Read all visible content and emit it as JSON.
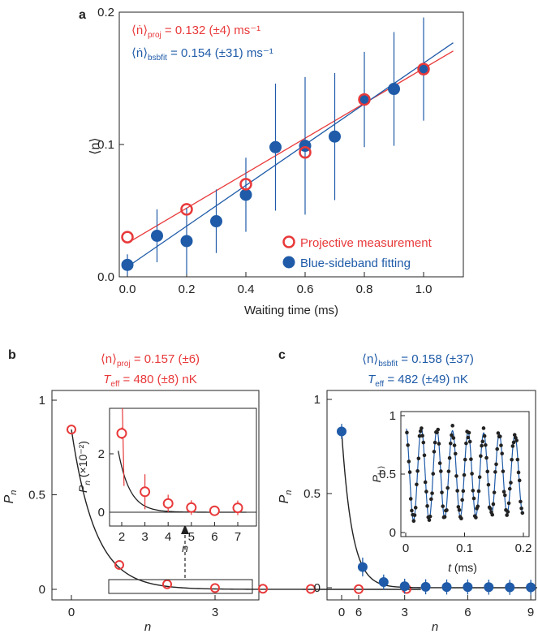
{
  "colors": {
    "red": "#e8393a",
    "blue": "#1f5ba8",
    "black": "#222222",
    "dark": "#222222"
  },
  "chart_data": [
    {
      "panel": "a",
      "type": "scatter",
      "xlabel": "Waiting time (ms)",
      "ylabel": "⟨n⟩",
      "xlim": [
        -0.02,
        1.1
      ],
      "ylim": [
        0,
        0.2
      ],
      "xticks": [
        "0.0",
        "0.2",
        "0.4",
        "0.6",
        "0.8",
        "1.0"
      ],
      "yticks": [
        "0.0",
        "0.1",
        "0.2"
      ],
      "annotations": [
        {
          "text": "⟨ṅ⟩",
          "sub": "proj",
          "rest": " = 0.132 (±4) ms⁻¹",
          "color": "red"
        },
        {
          "text": "⟨ṅ⟩",
          "sub": "bsbfit",
          "rest": " = 0.154 (±31) ms⁻¹",
          "color": "blue"
        }
      ],
      "legend": {
        "position": "bottom-right",
        "entries": [
          "Projective measurement",
          "Blue-sideband fitting"
        ]
      },
      "series": [
        {
          "name": "Projective measurement",
          "marker": "open-circle",
          "color": "red",
          "x": [
            0.0,
            0.2,
            0.4,
            0.6,
            0.8,
            1.0
          ],
          "y": [
            0.03,
            0.051,
            0.07,
            0.094,
            0.134,
            0.157
          ],
          "fit": {
            "slope": 0.132,
            "intercept": 0.0255
          }
        },
        {
          "name": "Blue-sideband fitting",
          "marker": "filled-circle",
          "color": "blue",
          "x": [
            0.0,
            0.1,
            0.2,
            0.3,
            0.4,
            0.5,
            0.6,
            0.7,
            0.8,
            0.9,
            1.0
          ],
          "y": [
            0.009,
            0.031,
            0.027,
            0.042,
            0.062,
            0.098,
            0.099,
            0.106,
            0.134,
            0.142,
            0.157
          ],
          "yerr": [
            0.008,
            0.02,
            0.025,
            0.024,
            0.028,
            0.048,
            0.052,
            0.048,
            0.036,
            0.043,
            0.039
          ],
          "fit": {
            "slope": 0.154,
            "intercept": 0.0075
          }
        }
      ]
    },
    {
      "panel": "b",
      "type": "scatter",
      "title1": "⟨n⟩",
      "title1_sub": "proj",
      "title1_rest": " = 0.157 (±6)",
      "title2": "T",
      "title2_sub": "eff",
      "title2_rest": " = 480 (±8) nK",
      "xlabel": "n",
      "ylabel": "P",
      "ylabel_sub": "n",
      "xlim": [
        -0.5,
        7.5
      ],
      "ylim": [
        -0.05,
        1
      ],
      "xticks": [
        "0",
        "3",
        "6"
      ],
      "yticks": [
        "0",
        "0.5",
        "1"
      ],
      "series": [
        {
          "marker": "open-circle",
          "color": "red",
          "x": [
            0,
            1,
            2,
            3,
            4,
            5,
            6,
            7
          ],
          "y": [
            0.845,
            0.129,
            0.027,
            0.007,
            0.003,
            0.002,
            0.001,
            0.002
          ]
        }
      ],
      "inset": {
        "xlabel": "n",
        "ylabel": "P",
        "ylabel_sub": "n",
        "ylabel_rest": " (×10⁻²)",
        "xlim": [
          1.7,
          7.4
        ],
        "ylim": [
          -0.6,
          3.0
        ],
        "xticks": [
          "2",
          "3",
          "4",
          "5",
          "6",
          "7"
        ],
        "yticks": [
          "0",
          "2"
        ],
        "x": [
          2,
          3,
          4,
          5,
          6,
          7
        ],
        "y": [
          2.7,
          0.7,
          0.3,
          0.16,
          0.05,
          0.15
        ],
        "yerr": [
          0.2,
          0.6,
          0.3,
          0.25,
          0.15,
          0.25
        ]
      },
      "fit_curve": "thermal"
    },
    {
      "panel": "c",
      "type": "scatter",
      "title1": "⟨n⟩",
      "title1_sub": "bsbfit",
      "title1_rest": " = 0.158 (±37)",
      "title2": "T",
      "title2_sub": "eff",
      "title2_rest": " = 482 (±49) nK",
      "xlabel": "n",
      "ylabel": "P",
      "ylabel_sub": "n",
      "xlim": [
        -0.5,
        9.5
      ],
      "ylim": [
        -0.05,
        1
      ],
      "xticks": [
        "0",
        "3",
        "6",
        "9"
      ],
      "yticks": [
        "0",
        "0.5",
        "1"
      ],
      "series": [
        {
          "marker": "filled-circle",
          "color": "blue",
          "x": [
            0,
            1,
            2,
            3,
            4,
            5,
            6,
            7,
            8,
            9
          ],
          "y": [
            0.83,
            0.11,
            0.03,
            0.008,
            0.005,
            0.004,
            0.004,
            0.003,
            0.002,
            0.002
          ],
          "yerr": [
            0.04,
            0.05,
            0.04,
            0.04,
            0.04,
            0.04,
            0.04,
            0.04,
            0.04,
            0.04
          ]
        }
      ],
      "inset": {
        "xlabel": "t (ms)",
        "ylabel": "P",
        "ylabel_sub": "|↑⟩",
        "xlim": [
          0,
          0.21
        ],
        "ylim": [
          0,
          1
        ],
        "xticks": [
          "0",
          "0.1",
          "0.2"
        ],
        "yticks": [
          "0",
          "0.5",
          "1"
        ],
        "oscillation": {
          "period_ms": 0.0265,
          "center": 0.5,
          "amplitude": 0.4,
          "points": 120
        }
      },
      "fit_curve": "thermal"
    }
  ]
}
